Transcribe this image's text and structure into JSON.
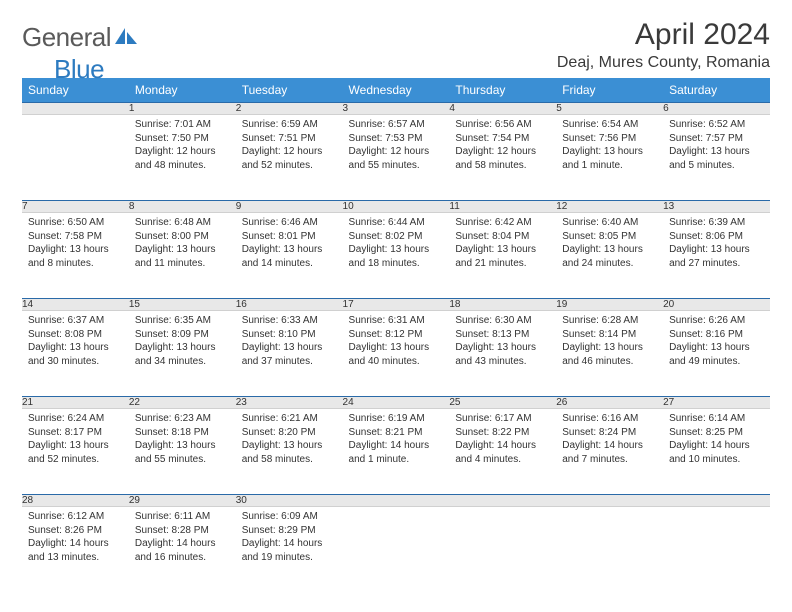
{
  "logo": {
    "text1": "General",
    "text2": "Blue"
  },
  "title": "April 2024",
  "location": "Deaj, Mures County, Romania",
  "colors": {
    "header_bg": "#3b8fd4",
    "header_text": "#ffffff",
    "daynum_bg": "#e8e8e8",
    "rule": "#2a6aa8",
    "logo_gray": "#5a5a5a",
    "logo_blue": "#2d7bc0"
  },
  "weekdays": [
    "Sunday",
    "Monday",
    "Tuesday",
    "Wednesday",
    "Thursday",
    "Friday",
    "Saturday"
  ],
  "weeks": [
    [
      null,
      {
        "n": "1",
        "sunrise": "7:01 AM",
        "sunset": "7:50 PM",
        "daylight": "12 hours and 48 minutes."
      },
      {
        "n": "2",
        "sunrise": "6:59 AM",
        "sunset": "7:51 PM",
        "daylight": "12 hours and 52 minutes."
      },
      {
        "n": "3",
        "sunrise": "6:57 AM",
        "sunset": "7:53 PM",
        "daylight": "12 hours and 55 minutes."
      },
      {
        "n": "4",
        "sunrise": "6:56 AM",
        "sunset": "7:54 PM",
        "daylight": "12 hours and 58 minutes."
      },
      {
        "n": "5",
        "sunrise": "6:54 AM",
        "sunset": "7:56 PM",
        "daylight": "13 hours and 1 minute."
      },
      {
        "n": "6",
        "sunrise": "6:52 AM",
        "sunset": "7:57 PM",
        "daylight": "13 hours and 5 minutes."
      }
    ],
    [
      {
        "n": "7",
        "sunrise": "6:50 AM",
        "sunset": "7:58 PM",
        "daylight": "13 hours and 8 minutes."
      },
      {
        "n": "8",
        "sunrise": "6:48 AM",
        "sunset": "8:00 PM",
        "daylight": "13 hours and 11 minutes."
      },
      {
        "n": "9",
        "sunrise": "6:46 AM",
        "sunset": "8:01 PM",
        "daylight": "13 hours and 14 minutes."
      },
      {
        "n": "10",
        "sunrise": "6:44 AM",
        "sunset": "8:02 PM",
        "daylight": "13 hours and 18 minutes."
      },
      {
        "n": "11",
        "sunrise": "6:42 AM",
        "sunset": "8:04 PM",
        "daylight": "13 hours and 21 minutes."
      },
      {
        "n": "12",
        "sunrise": "6:40 AM",
        "sunset": "8:05 PM",
        "daylight": "13 hours and 24 minutes."
      },
      {
        "n": "13",
        "sunrise": "6:39 AM",
        "sunset": "8:06 PM",
        "daylight": "13 hours and 27 minutes."
      }
    ],
    [
      {
        "n": "14",
        "sunrise": "6:37 AM",
        "sunset": "8:08 PM",
        "daylight": "13 hours and 30 minutes."
      },
      {
        "n": "15",
        "sunrise": "6:35 AM",
        "sunset": "8:09 PM",
        "daylight": "13 hours and 34 minutes."
      },
      {
        "n": "16",
        "sunrise": "6:33 AM",
        "sunset": "8:10 PM",
        "daylight": "13 hours and 37 minutes."
      },
      {
        "n": "17",
        "sunrise": "6:31 AM",
        "sunset": "8:12 PM",
        "daylight": "13 hours and 40 minutes."
      },
      {
        "n": "18",
        "sunrise": "6:30 AM",
        "sunset": "8:13 PM",
        "daylight": "13 hours and 43 minutes."
      },
      {
        "n": "19",
        "sunrise": "6:28 AM",
        "sunset": "8:14 PM",
        "daylight": "13 hours and 46 minutes."
      },
      {
        "n": "20",
        "sunrise": "6:26 AM",
        "sunset": "8:16 PM",
        "daylight": "13 hours and 49 minutes."
      }
    ],
    [
      {
        "n": "21",
        "sunrise": "6:24 AM",
        "sunset": "8:17 PM",
        "daylight": "13 hours and 52 minutes."
      },
      {
        "n": "22",
        "sunrise": "6:23 AM",
        "sunset": "8:18 PM",
        "daylight": "13 hours and 55 minutes."
      },
      {
        "n": "23",
        "sunrise": "6:21 AM",
        "sunset": "8:20 PM",
        "daylight": "13 hours and 58 minutes."
      },
      {
        "n": "24",
        "sunrise": "6:19 AM",
        "sunset": "8:21 PM",
        "daylight": "14 hours and 1 minute."
      },
      {
        "n": "25",
        "sunrise": "6:17 AM",
        "sunset": "8:22 PM",
        "daylight": "14 hours and 4 minutes."
      },
      {
        "n": "26",
        "sunrise": "6:16 AM",
        "sunset": "8:24 PM",
        "daylight": "14 hours and 7 minutes."
      },
      {
        "n": "27",
        "sunrise": "6:14 AM",
        "sunset": "8:25 PM",
        "daylight": "14 hours and 10 minutes."
      }
    ],
    [
      {
        "n": "28",
        "sunrise": "6:12 AM",
        "sunset": "8:26 PM",
        "daylight": "14 hours and 13 minutes."
      },
      {
        "n": "29",
        "sunrise": "6:11 AM",
        "sunset": "8:28 PM",
        "daylight": "14 hours and 16 minutes."
      },
      {
        "n": "30",
        "sunrise": "6:09 AM",
        "sunset": "8:29 PM",
        "daylight": "14 hours and 19 minutes."
      },
      null,
      null,
      null,
      null
    ]
  ],
  "labels": {
    "sunrise": "Sunrise:",
    "sunset": "Sunset:",
    "daylight": "Daylight:"
  }
}
